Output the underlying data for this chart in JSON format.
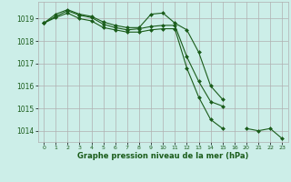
{
  "bg_color": "#cceee8",
  "grid_color": "#b0b0b0",
  "line_color": "#1a5c1a",
  "marker_color": "#1a5c1a",
  "xlabel": "Graphe pression niveau de la mer (hPa)",
  "xlabel_color": "#1a5c1a",
  "ylim": [
    1013.5,
    1019.75
  ],
  "yticks": [
    1014,
    1015,
    1016,
    1017,
    1018,
    1019
  ],
  "tick_positions": [
    0,
    1,
    2,
    3,
    4,
    5,
    6,
    7,
    8,
    9,
    10,
    11,
    12,
    13,
    14,
    15,
    16,
    17,
    18,
    19,
    20
  ],
  "tick_labels": [
    "0",
    "1",
    "2",
    "3",
    "4",
    "5",
    "6",
    "7",
    "8",
    "9",
    "10",
    "11",
    "12",
    "13",
    "14",
    "15",
    "16",
    "20",
    "21",
    "22",
    "23"
  ],
  "xlim": [
    -0.5,
    20.5
  ],
  "series": [
    {
      "x": [
        0,
        1,
        2,
        3,
        4,
        5,
        6,
        7,
        8,
        9,
        10,
        11,
        12,
        13,
        14,
        15
      ],
      "y": [
        1018.8,
        1019.2,
        1019.4,
        1019.2,
        1019.1,
        1018.85,
        1018.7,
        1018.6,
        1018.6,
        1019.2,
        1019.25,
        1018.8,
        1018.5,
        1017.5,
        1016.0,
        1015.4
      ]
    },
    {
      "x": [
        0,
        1,
        2,
        3,
        4,
        5,
        6,
        7,
        8,
        9,
        10,
        11,
        12,
        13,
        14,
        15
      ],
      "y": [
        1018.8,
        1019.1,
        1019.35,
        1019.15,
        1019.05,
        1018.75,
        1018.6,
        1018.5,
        1018.55,
        1018.65,
        1018.7,
        1018.7,
        1017.3,
        1016.2,
        1015.3,
        1015.1
      ]
    },
    {
      "x": [
        0,
        1,
        2,
        3,
        4,
        5,
        6,
        7,
        8,
        9,
        10,
        11,
        12,
        13,
        14,
        15
      ],
      "y": [
        1018.8,
        1019.05,
        1019.25,
        1019.0,
        1018.9,
        1018.6,
        1018.5,
        1018.4,
        1018.4,
        1018.5,
        1018.55,
        1018.55,
        1016.8,
        1015.5,
        1014.5,
        1014.1
      ]
    },
    {
      "x": [
        17,
        18,
        19,
        20
      ],
      "y": [
        1014.1,
        1014.0,
        1014.1,
        1013.65
      ]
    }
  ]
}
